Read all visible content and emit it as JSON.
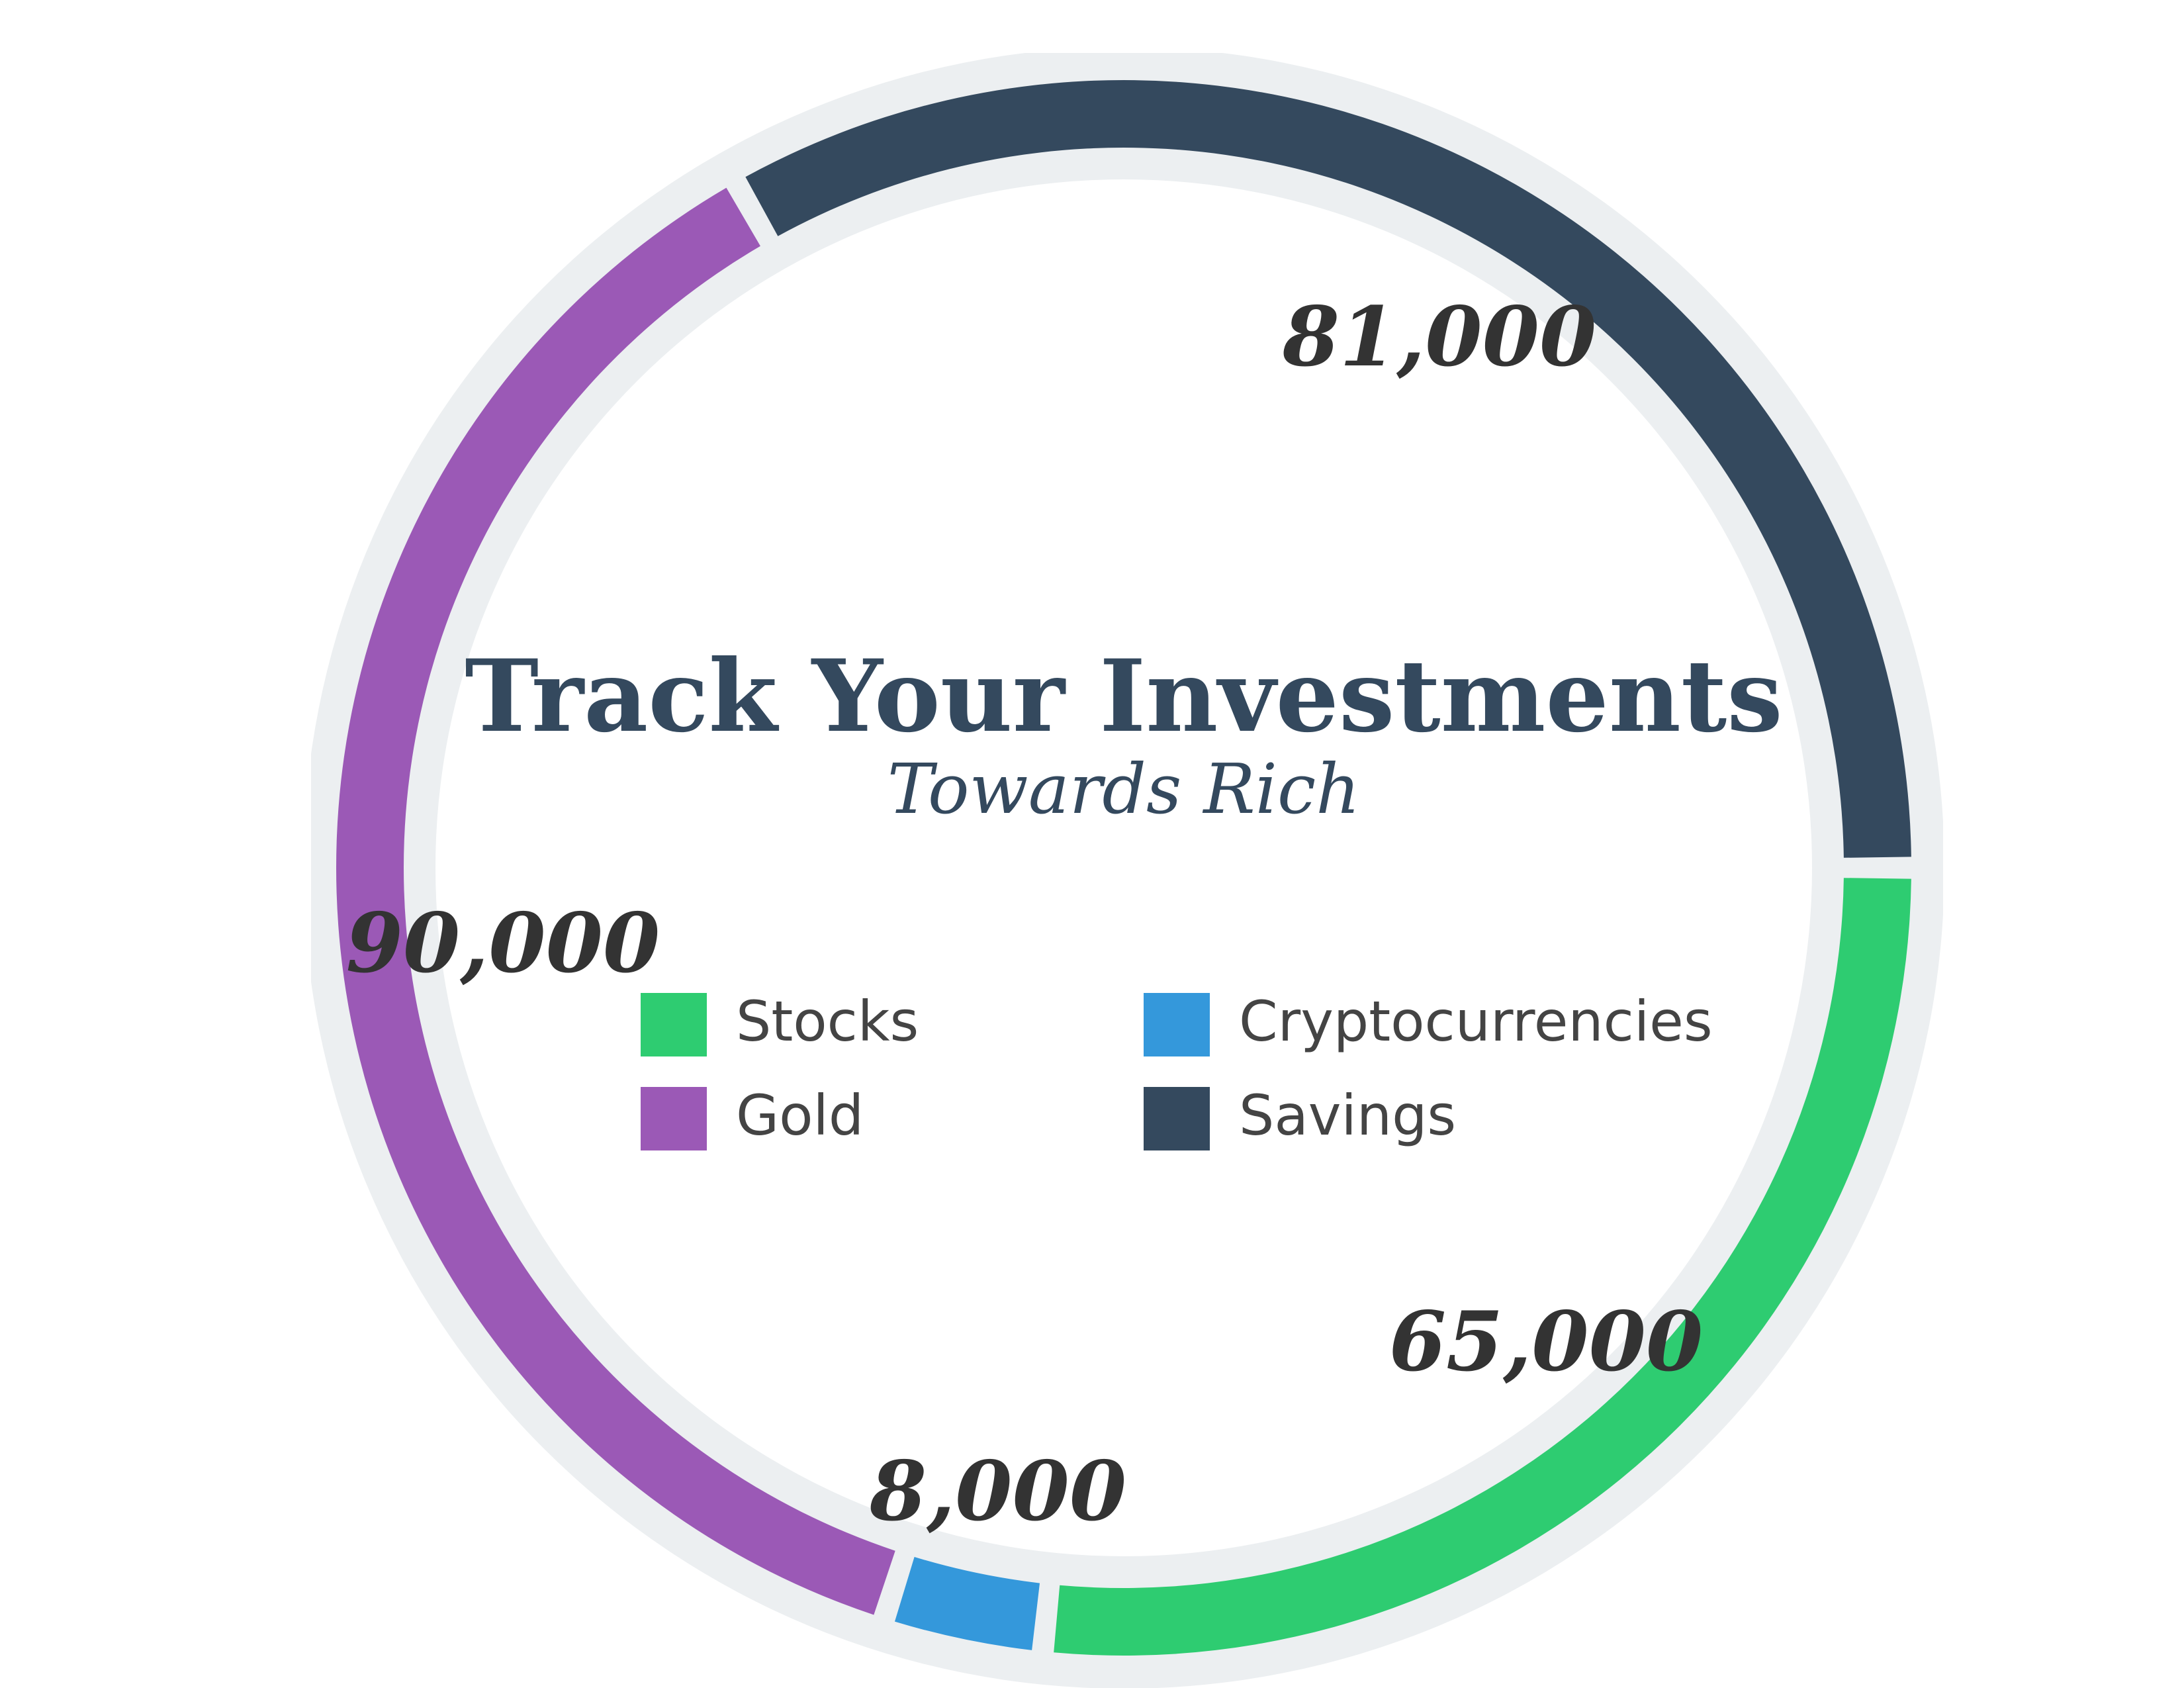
{
  "chart_data": {
    "type": "pie",
    "variant": "donut",
    "title": "Track Your Investments",
    "subtitle": "Towards Rich",
    "categories": [
      "Stocks",
      "Cryptocurrencies",
      "Gold",
      "Savings"
    ],
    "values": [
      65000,
      8000,
      90000,
      81000
    ],
    "value_labels": [
      "65,000",
      "8,000",
      "90,000",
      "81,000"
    ],
    "colors": [
      "#2ecc71",
      "#3498db",
      "#9b59b6",
      "#34495e"
    ],
    "track_color": "#eceff1",
    "legend": {
      "position": "center",
      "items": [
        {
          "label": "Stocks",
          "color": "#2ecc71"
        },
        {
          "label": "Cryptocurrencies",
          "color": "#3498db"
        },
        {
          "label": "Gold",
          "color": "#9b59b6"
        },
        {
          "label": "Savings",
          "color": "#34495e"
        }
      ]
    }
  }
}
